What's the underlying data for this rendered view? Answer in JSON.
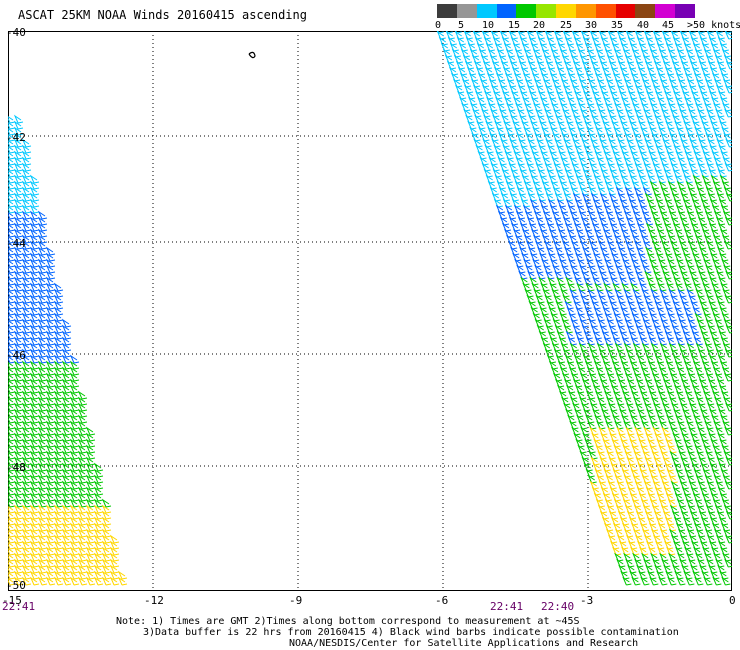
{
  "title": "ASCAT 25KM NOAA Winds 20160415 ascending",
  "colorbar": {
    "colors": [
      "#3c3c3c",
      "#969696",
      "#00c8ff",
      "#0064ff",
      "#00c800",
      "#96e600",
      "#ffd700",
      "#ff9600",
      "#ff5000",
      "#e60000",
      "#8b4513",
      "#d200d2",
      "#7800b4"
    ],
    "labels": [
      "0",
      "5",
      "10",
      "15",
      "20",
      "25",
      "30",
      "35",
      "40",
      "45",
      ">50 knots"
    ]
  },
  "axes": {
    "y_labels": [
      "-40",
      "-42",
      "-44",
      "-46",
      "-48",
      "-50"
    ],
    "x_labels": [
      "-15",
      "-12",
      "-9",
      "-6",
      "-3",
      "0"
    ]
  },
  "times": [
    "22:41",
    "22:41",
    "22:40"
  ],
  "notes": [
    "Note: 1) Times are GMT 2)Times along bottom correspond to measurement at ~45S",
    "3)Data buffer is 22 hrs from 20160415 4) Black wind barbs indicate possible contamination",
    "NOAA/NESDIS/Center for Satellite Applications and Research"
  ]
}
